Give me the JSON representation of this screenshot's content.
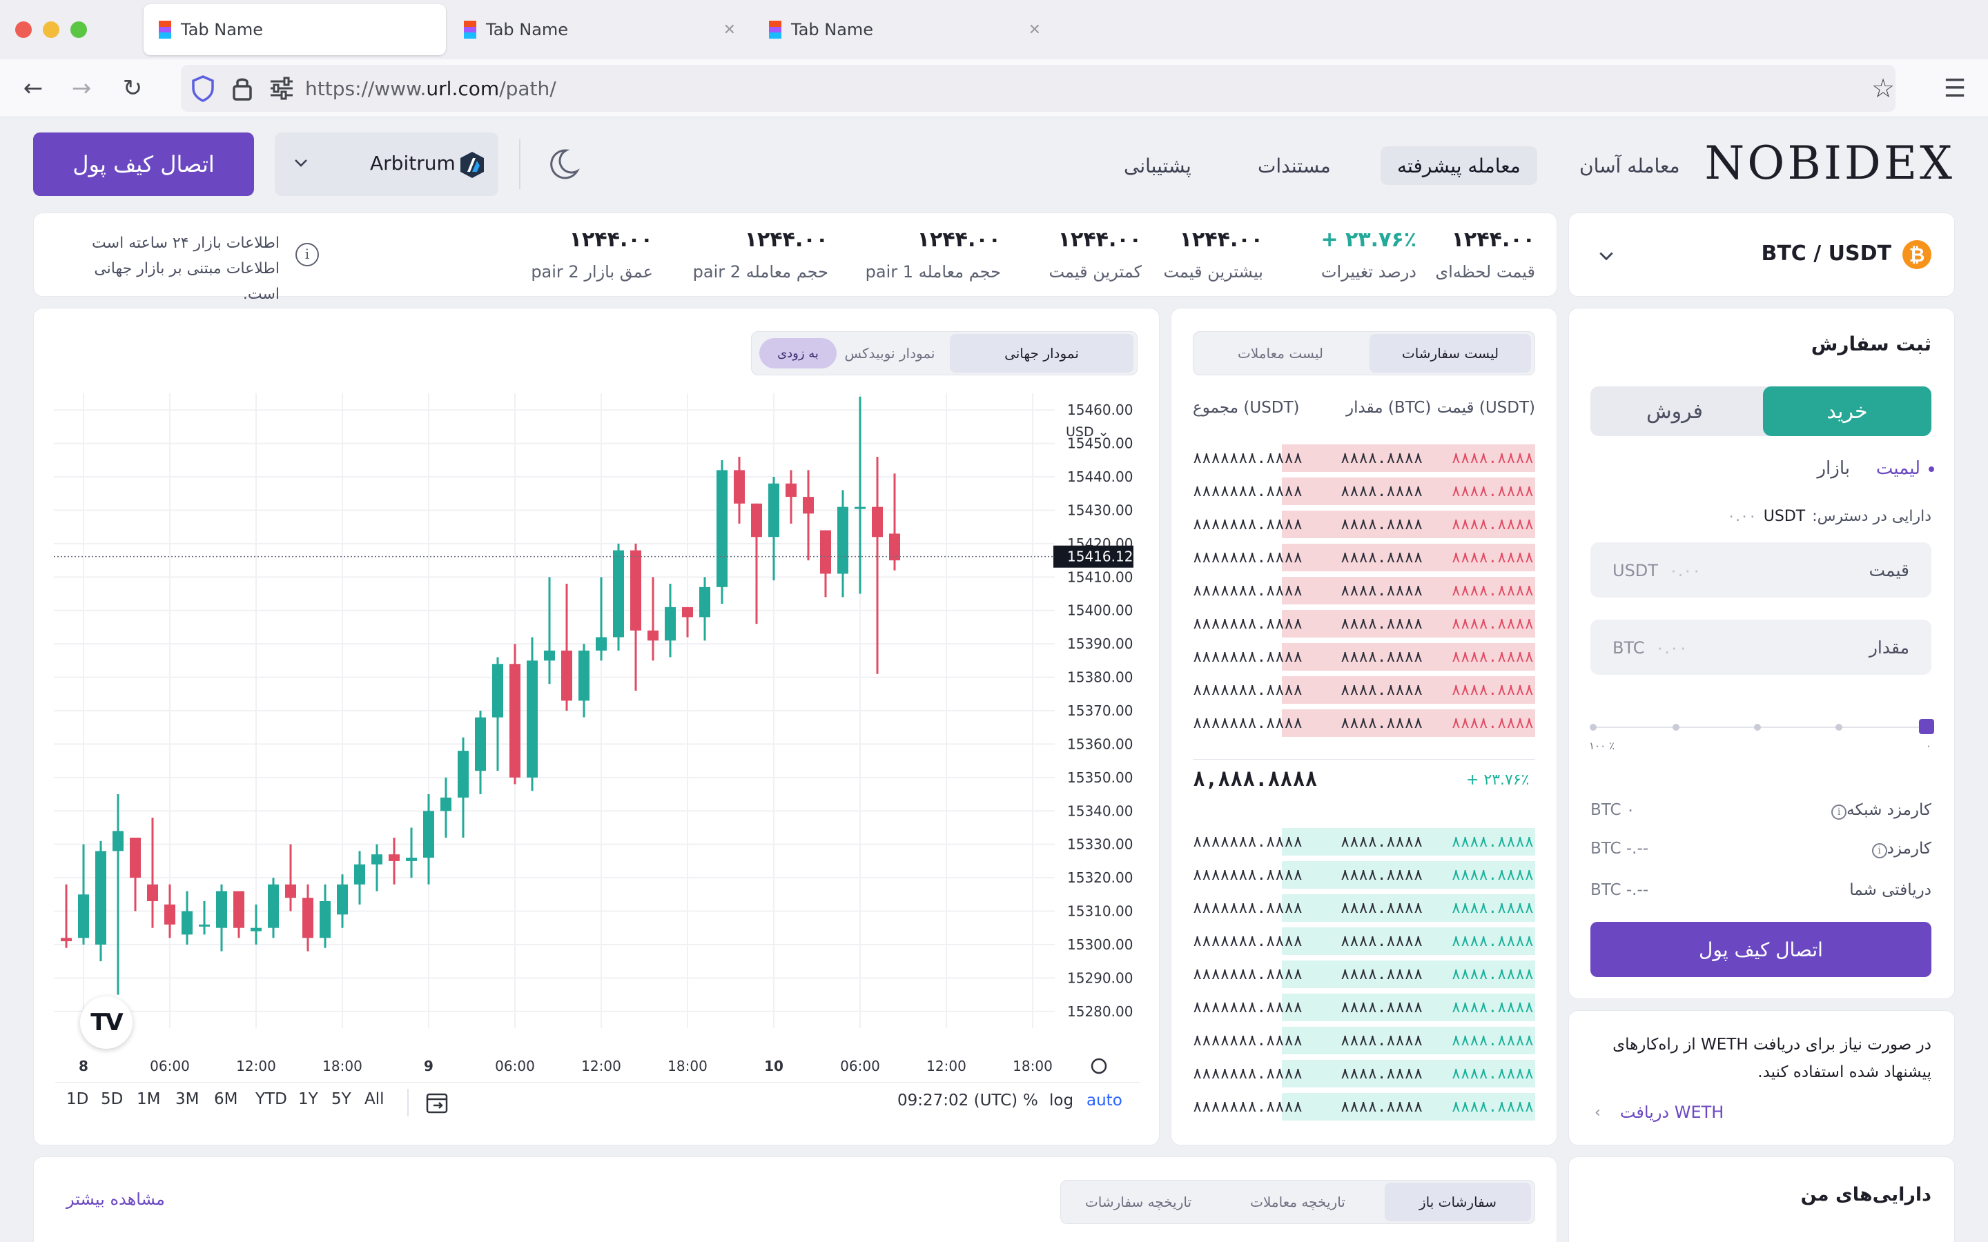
{
  "browser": {
    "tabs": [
      {
        "title": "Tab Name",
        "active": true
      },
      {
        "title": "Tab Name",
        "active": false
      },
      {
        "title": "Tab Name",
        "active": false
      }
    ],
    "url_prefix": "https://www.",
    "url_domain": "url.com",
    "url_path": "/path/"
  },
  "header": {
    "logo": "NOBIDEX",
    "nav": [
      "معامله آسان",
      "معامله پیشرفته",
      "مستندات",
      "پشتیبانی"
    ],
    "active_nav": "معامله پیشرفته",
    "network": "Arbitrum",
    "connect_wallet": "اتصال کیف پول"
  },
  "pair": {
    "name": "BTC / USDT",
    "coin_symbol": "₿"
  },
  "stats": [
    {
      "label": "قیمت لحظه‌ای",
      "value": "۱۲۴۴.۰۰",
      "color": "#1d1e27"
    },
    {
      "label": "درصد تغییرات",
      "value": "+ ۲۳.۷۶٪",
      "color": "#22a99a"
    },
    {
      "label": "بیشترین قیمت",
      "value": "۱۲۴۴.۰۰",
      "color": "#1d1e27"
    },
    {
      "label": "کمترین قیمت",
      "value": "۱۲۴۴.۰۰",
      "color": "#1d1e27"
    },
    {
      "label": "حجم معامله pair 1",
      "value": "۱۲۴۴.۰۰",
      "color": "#1d1e27"
    },
    {
      "label": "حجم معامله pair 2",
      "value": "۱۲۴۴.۰۰",
      "color": "#1d1e27"
    },
    {
      "label": "عمق بازار pair 2",
      "value": "۱۲۴۴.۰۰",
      "color": "#1d1e27"
    }
  ],
  "market_info": {
    "line1": "اطلاعات بازار ۲۴ ساعته است",
    "line2": "اطلاعات مبتنی بر بازار جهانی است."
  },
  "chart_tabs": {
    "global": "نمودار جهانی",
    "nobidex": "نمودار نوبیدکس",
    "soon": "به زودی"
  },
  "chart_data": {
    "type": "candlestick",
    "currency": "USD",
    "ylim": [
      15275,
      15465
    ],
    "y_ticks": [
      "15460.00",
      "15450.00",
      "15440.00",
      "15430.00",
      "15420.00",
      "15410.00",
      "15400.00",
      "15390.00",
      "15380.00",
      "15370.00",
      "15360.00",
      "15350.00",
      "15340.00",
      "15330.00",
      "15320.00",
      "15310.00",
      "15300.00",
      "15290.00",
      "15280.00"
    ],
    "current_price": "15416.12",
    "x_ticks": [
      {
        "label": "8",
        "bold": true,
        "i": 1
      },
      {
        "label": "06:00",
        "bold": false,
        "i": 6
      },
      {
        "label": "12:00",
        "bold": false,
        "i": 11
      },
      {
        "label": "18:00",
        "bold": false,
        "i": 16
      },
      {
        "label": "9",
        "bold": true,
        "i": 21
      },
      {
        "label": "06:00",
        "bold": false,
        "i": 26
      },
      {
        "label": "12:00",
        "bold": false,
        "i": 31
      },
      {
        "label": "18:00",
        "bold": false,
        "i": 36
      },
      {
        "label": "10",
        "bold": true,
        "i": 41
      },
      {
        "label": "06:00",
        "bold": false,
        "i": 46
      },
      {
        "label": "12:00",
        "bold": false,
        "i": 51
      },
      {
        "label": "18:00",
        "bold": false,
        "i": 56
      }
    ],
    "candles": [
      [
        15302,
        15318,
        15299,
        15301
      ],
      [
        15302,
        15330,
        15300,
        15315
      ],
      [
        15300,
        15331,
        15295,
        15328
      ],
      [
        15328,
        15345,
        15285,
        15334
      ],
      [
        15332,
        15332,
        15310,
        15320
      ],
      [
        15318,
        15338,
        15305,
        15313
      ],
      [
        15312,
        15318,
        15302,
        15306
      ],
      [
        15303,
        15316,
        15300,
        15310
      ],
      [
        15306,
        15313,
        15303,
        15306
      ],
      [
        15305,
        15318,
        15298,
        15316
      ],
      [
        15316,
        15316,
        15302,
        15305
      ],
      [
        15304,
        15312,
        15300,
        15305
      ],
      [
        15305,
        15320,
        15302,
        15318
      ],
      [
        15318,
        15330,
        15310,
        15314
      ],
      [
        15314,
        15318,
        15298,
        15302
      ],
      [
        15302,
        15318,
        15299,
        15313
      ],
      [
        15309,
        15321,
        15305,
        15318
      ],
      [
        15318,
        15328,
        15312,
        15324
      ],
      [
        15324,
        15330,
        15316,
        15327
      ],
      [
        15327,
        15332,
        15318,
        15325
      ],
      [
        15325,
        15335,
        15320,
        15326
      ],
      [
        15326,
        15345,
        15318,
        15340
      ],
      [
        15340,
        15350,
        15332,
        15344
      ],
      [
        15344,
        15362,
        15332,
        15358
      ],
      [
        15352,
        15370,
        15345,
        15368
      ],
      [
        15368,
        15386,
        15352,
        15384
      ],
      [
        15384,
        15390,
        15348,
        15350
      ],
      [
        15350,
        15392,
        15346,
        15385
      ],
      [
        15385,
        15410,
        15378,
        15388
      ],
      [
        15388,
        15408,
        15370,
        15373
      ],
      [
        15373,
        15390,
        15368,
        15388
      ],
      [
        15388,
        15410,
        15385,
        15392
      ],
      [
        15392,
        15420,
        15388,
        15418
      ],
      [
        15418,
        15420,
        15376,
        15394
      ],
      [
        15394,
        15410,
        15385,
        15391
      ],
      [
        15391,
        15408,
        15386,
        15401
      ],
      [
        15401,
        15401,
        15392,
        15398
      ],
      [
        15398,
        15410,
        15391,
        15407
      ],
      [
        15407,
        15445,
        15402,
        15442
      ],
      [
        15442,
        15446,
        15426,
        15432
      ],
      [
        15432,
        15432,
        15396,
        15422
      ],
      [
        15422,
        15440,
        15409,
        15438
      ],
      [
        15438,
        15442,
        15426,
        15434
      ],
      [
        15434,
        15442,
        15415,
        15429
      ],
      [
        15424,
        15424,
        15404,
        15411
      ],
      [
        15411,
        15436,
        15404,
        15431
      ],
      [
        15431,
        15464,
        15405,
        15431
      ],
      [
        15431,
        15446,
        15381,
        15422
      ],
      [
        15423,
        15441,
        15412,
        15415
      ]
    ]
  },
  "chart_toolbar": {
    "ranges": [
      "1D",
      "5D",
      "1M",
      "3M",
      "6M",
      "YTD",
      "1Y",
      "5Y",
      "All"
    ],
    "time": "09:27:02 (UTC)",
    "percent": "%",
    "log": "log",
    "auto": "auto"
  },
  "orderbook": {
    "tab_orders": "لیست سفارشات",
    "tab_trades": "لیست معاملات",
    "col_price": "قیمت (USDT)",
    "col_amount": "مقدار (BTC)",
    "col_total": "مجموع (USDT)",
    "row_price": "۸۸۸۸.۸۸۸۸",
    "row_amount": "۸۸۸۸.۸۸۸۸",
    "row_total": "۸۸۸۸۸۸۸.۸۸۸۸",
    "asks_depth": [
      0.74,
      0.74,
      0.74,
      0.74,
      0.74,
      0.74,
      0.74,
      0.74,
      0.74
    ],
    "bids_depth": [
      0.74,
      0.74,
      0.74,
      0.74,
      0.74,
      0.74,
      0.74,
      0.74,
      0.74
    ],
    "mid_price": "۸,۸۸۸.۸۸۸۸",
    "mid_change": "+ ۲۳.۷۶٪",
    "ask_color": "#f7d6da",
    "bid_color": "#d9f5f0",
    "ask_text": "#e04b63",
    "bid_text": "#18b09a"
  },
  "order_form": {
    "title": "ثبت سفارش",
    "buy": "خرید",
    "sell": "فروش",
    "limit": "لیمیت",
    "market": "بازار",
    "available_label": "دارایی در دسترس:",
    "available_unit": "USDT",
    "available_value": "۰.۰۰",
    "price_label": "قیمت",
    "price_unit": "USDT",
    "price_placeholder": "۰.۰۰",
    "amount_label": "مقدار",
    "amount_unit": "BTC",
    "amount_placeholder": "۰.۰۰",
    "slider_min": "۰",
    "slider_max": "۱۰۰ ٪",
    "network_fee_label": "کارمزد شبکه",
    "network_fee_value": "BTC ۰",
    "fee_label": "کارمزد",
    "fee_value": "BTC -.--",
    "receive_label": "دریافتی شما",
    "receive_value": "BTC -.--",
    "connect_wallet": "اتصال کیف پول"
  },
  "weth_card": {
    "text_line1": "در صورت نیاز برای دریافت WETH از راه‌کارهای",
    "text_line2": "پیشنهاد شده استفاده کنید.",
    "link": "دریافت WETH"
  },
  "bottom": {
    "tabs": [
      "سفارشات باز",
      "تاریخچه معاملات",
      "تاریخچه سفارشات"
    ],
    "see_more": "مشاهده بیشتر",
    "my_assets": "دارایی‌های من"
  },
  "colors": {
    "accent": "#6b48c2",
    "up": "#22a99a",
    "down": "#e04b63"
  }
}
